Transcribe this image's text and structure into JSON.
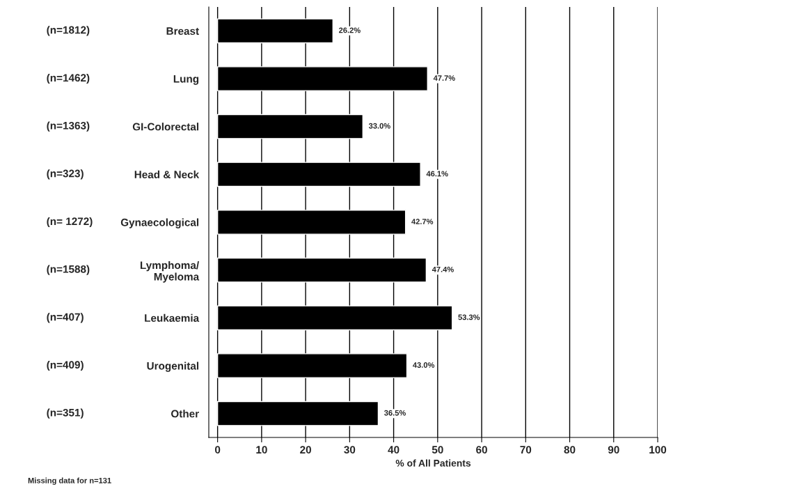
{
  "chart_data": {
    "type": "bar",
    "orientation": "horizontal",
    "categories": [
      "Breast",
      "Lung",
      "GI-Colorectal",
      "Head & Neck",
      "Gynaecological",
      "Lymphoma/\nMyeloma",
      "Leukaemia",
      "Urogenital",
      "Other"
    ],
    "values": [
      26.2,
      47.7,
      33.0,
      46.1,
      42.7,
      47.4,
      53.3,
      43.0,
      36.5
    ],
    "value_labels": [
      "26.2%",
      "47.7%",
      "33.0%",
      "46.1%",
      "42.7%",
      "47.4%",
      "53.3%",
      "43.0%",
      "36.5%"
    ],
    "color": "#000000",
    "xlabel": "% of All Patients",
    "xlim": [
      -2,
      100
    ],
    "xticks": [
      0,
      10,
      20,
      30,
      40,
      50,
      60,
      70,
      80,
      90,
      100
    ],
    "grid": "x",
    "annotations": [
      "(n=1812)",
      "(n=1462)",
      "(n=1363)",
      "(n=323)",
      "(n= 1272)",
      "(n=1588)",
      "(n=407)",
      "(n=409)",
      "(n=351)",
      "Missing data for n=131"
    ]
  }
}
